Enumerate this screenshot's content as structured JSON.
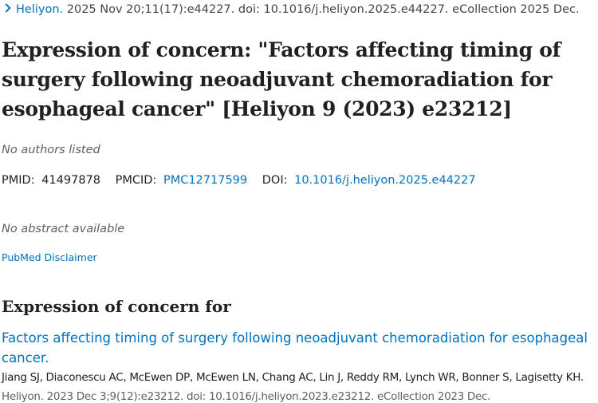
{
  "citation": {
    "journal": "Heliyon.",
    "details": "2025 Nov 20;11(17):e44227. doi: 10.1016/j.heliyon.2025.e44227. eCollection 2025 Dec."
  },
  "title": "Expression of concern: \"Factors affecting timing of surgery following neoadjuvant chemoradiation for esophageal cancer\" [Heliyon 9 (2023) e23212]",
  "authors": "No authors listed",
  "ids": {
    "pmid_label": "PMID:",
    "pmid": "41497878",
    "pmcid_label": "PMCID:",
    "pmcid": "PMC12717599",
    "doi_label": "DOI:",
    "doi": "10.1016/j.heliyon.2025.e44227"
  },
  "abstract": "No abstract available",
  "disclaimer": "PubMed Disclaimer",
  "concern_heading": "Expression of concern for",
  "related": {
    "title": "Factors affecting timing of surgery following neoadjuvant chemoradiation for esophageal cancer.",
    "authors": "Jiang SJ, Diaconescu AC, McEwen DP, McEwen LN, Chang AC, Lin J, Reddy RM, Lynch WR, Bonner S, Lagisetty KH.",
    "citation": "Heliyon. 2023 Dec 3;9(12):e23212. doi: 10.1016/j.heliyon.2023.e23212. eCollection 2023 Dec."
  },
  "colors": {
    "link": "#0071bc",
    "text": "#212121",
    "muted": "#5b616b"
  }
}
